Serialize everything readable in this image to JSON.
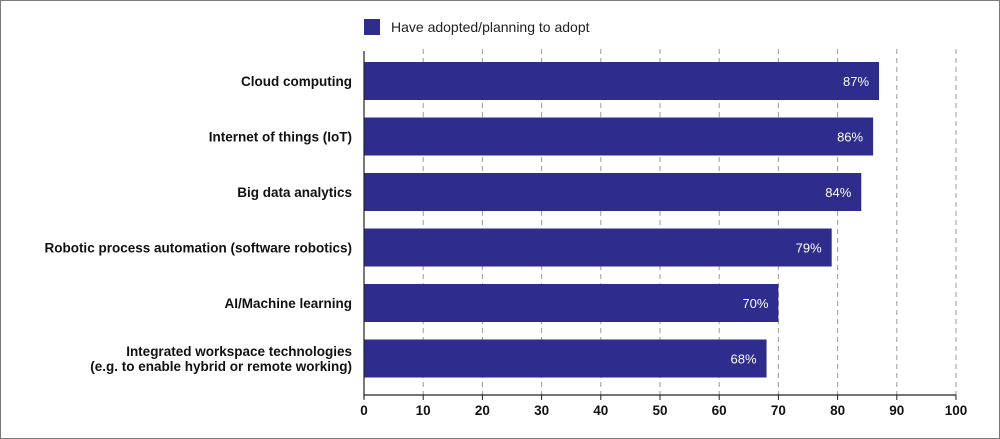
{
  "chart_data": {
    "type": "bar",
    "orientation": "horizontal",
    "categories": [
      "Cloud computing",
      "Internet of things (IoT)",
      "Big data analytics",
      "Robotic process automation (software robotics)",
      "AI/Machine learning",
      "Integrated workspace technologies\n(e.g. to enable hybrid or remote working)"
    ],
    "series": [
      {
        "name": "Have adopted/planning to adopt",
        "values": [
          87,
          86,
          84,
          79,
          70,
          68
        ],
        "value_labels": [
          "87%",
          "86%",
          "84%",
          "79%",
          "70%",
          "68%"
        ]
      }
    ],
    "xlim": [
      0,
      100
    ],
    "xticks": [
      0,
      10,
      20,
      30,
      40,
      50,
      60,
      70,
      80,
      90,
      100
    ],
    "grid": "vertical dashed at 10-unit intervals",
    "legend": "top-center",
    "title": "",
    "xlabel": "",
    "ylabel": ""
  },
  "colors": {
    "bar": "#2e2c8c",
    "grid": "#9a9a9a",
    "axis": "#222222",
    "data_label": "#ffffff"
  }
}
